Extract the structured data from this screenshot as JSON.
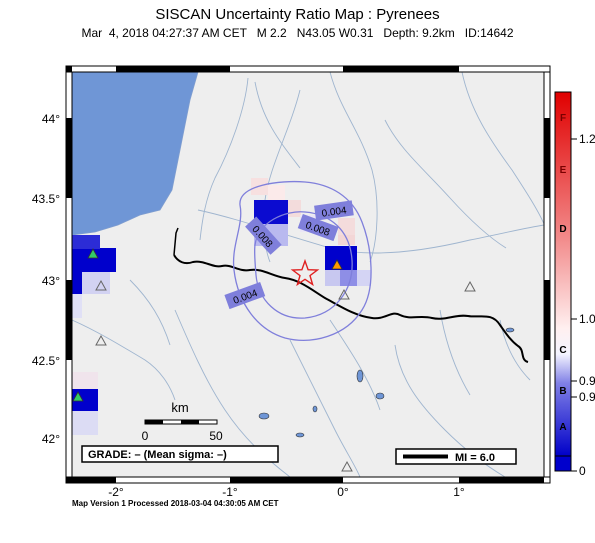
{
  "header": {
    "title": "SISCAN Uncertainty Ratio Map : Pyrenees",
    "subtitle": "Mar  4, 2018 04:27:37 AM CET   M 2.2   N43.05 W0.31   Depth: 9.2km   ID:14642"
  },
  "axes": {
    "x_ticks": [
      "-2°",
      "-1°",
      "0°",
      "1°"
    ],
    "y_ticks": [
      "44°",
      "43.5°",
      "43°",
      "42.5°",
      "42°"
    ]
  },
  "contours": [
    "0.004",
    "0.008",
    "0.008",
    "0.004"
  ],
  "scale_bar": {
    "unit": "km",
    "start": "0",
    "end": "50"
  },
  "grade_label": "GRADE: – (Mean sigma: –)",
  "mi_label": "MI = 6.0",
  "colorbar": {
    "letters": [
      "F",
      "E",
      "D",
      "C",
      "B",
      "A"
    ],
    "values": [
      "1.2",
      "1.0",
      "0.9",
      "0.9",
      "0"
    ]
  },
  "footer": "Map Version 1 Processed 2018-03-04 04:30:05 AM CET",
  "colors": {
    "sea": "#6f96d6",
    "land": "#eeeeee",
    "rivers": "#9fb5cf",
    "border": "#000000",
    "contour": "#7f7fdb",
    "epicenter": "#e02020",
    "high_ratio": "#e00000",
    "low_ratio": "#0000cc"
  }
}
